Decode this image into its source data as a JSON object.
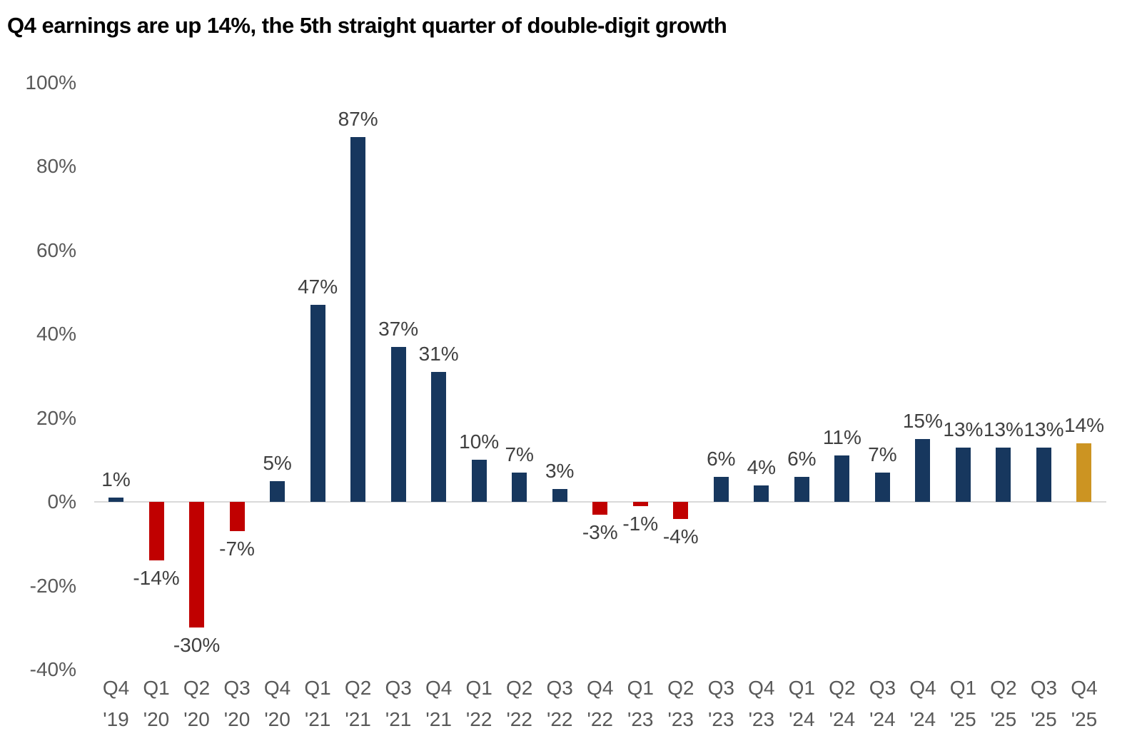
{
  "title": "Q4 earnings are up 14%, the 5th straight quarter of double-digit growth",
  "colors": {
    "positive_bar": "#17375E",
    "negative_bar": "#C00000",
    "highlight_bar": "#CC9422",
    "axis_label": "#595959",
    "data_label": "#404040",
    "zero_line": "#D9D9D9",
    "background": "#FFFFFF",
    "title_text": "#000000"
  },
  "chart_data": {
    "type": "bar",
    "title": "Q4 earnings are up 14%, the 5th straight quarter of double-digit growth",
    "xlabel": "",
    "ylabel": "",
    "ylim": [
      -40,
      100
    ],
    "grid": false,
    "legend": false,
    "y_ticks": [
      100,
      80,
      60,
      40,
      20,
      0,
      -20,
      -40
    ],
    "y_tick_labels": [
      "100%",
      "80%",
      "60%",
      "40%",
      "20%",
      "0%",
      "-20%",
      "-40%"
    ],
    "categories": [
      {
        "quarter": "Q4",
        "year": "'19"
      },
      {
        "quarter": "Q1",
        "year": "'20"
      },
      {
        "quarter": "Q2",
        "year": "'20"
      },
      {
        "quarter": "Q3",
        "year": "'20"
      },
      {
        "quarter": "Q4",
        "year": "'20"
      },
      {
        "quarter": "Q1",
        "year": "'21"
      },
      {
        "quarter": "Q2",
        "year": "'21"
      },
      {
        "quarter": "Q3",
        "year": "'21"
      },
      {
        "quarter": "Q4",
        "year": "'21"
      },
      {
        "quarter": "Q1",
        "year": "'22"
      },
      {
        "quarter": "Q2",
        "year": "'22"
      },
      {
        "quarter": "Q3",
        "year": "'22"
      },
      {
        "quarter": "Q4",
        "year": "'22"
      },
      {
        "quarter": "Q1",
        "year": "'23"
      },
      {
        "quarter": "Q2",
        "year": "'23"
      },
      {
        "quarter": "Q3",
        "year": "'23"
      },
      {
        "quarter": "Q4",
        "year": "'23"
      },
      {
        "quarter": "Q1",
        "year": "'24"
      },
      {
        "quarter": "Q2",
        "year": "'24"
      },
      {
        "quarter": "Q3",
        "year": "'24"
      },
      {
        "quarter": "Q4",
        "year": "'24"
      },
      {
        "quarter": "Q1",
        "year": "'25"
      },
      {
        "quarter": "Q2",
        "year": "'25"
      },
      {
        "quarter": "Q3",
        "year": "'25"
      },
      {
        "quarter": "Q4",
        "year": "'25"
      }
    ],
    "values": [
      1,
      -14,
      -30,
      -7,
      5,
      47,
      87,
      37,
      31,
      10,
      7,
      3,
      -3,
      -1,
      -4,
      6,
      4,
      6,
      11,
      7,
      15,
      13,
      13,
      13,
      14
    ],
    "data_labels": [
      "1%",
      "-14%",
      "-30%",
      "-7%",
      "5%",
      "47%",
      "87%",
      "37%",
      "31%",
      "10%",
      "7%",
      "3%",
      "-3%",
      "-1%",
      "-4%",
      "6%",
      "4%",
      "6%",
      "11%",
      "7%",
      "15%",
      "13%",
      "13%",
      "13%",
      "14%"
    ],
    "highlight_index": 24
  }
}
